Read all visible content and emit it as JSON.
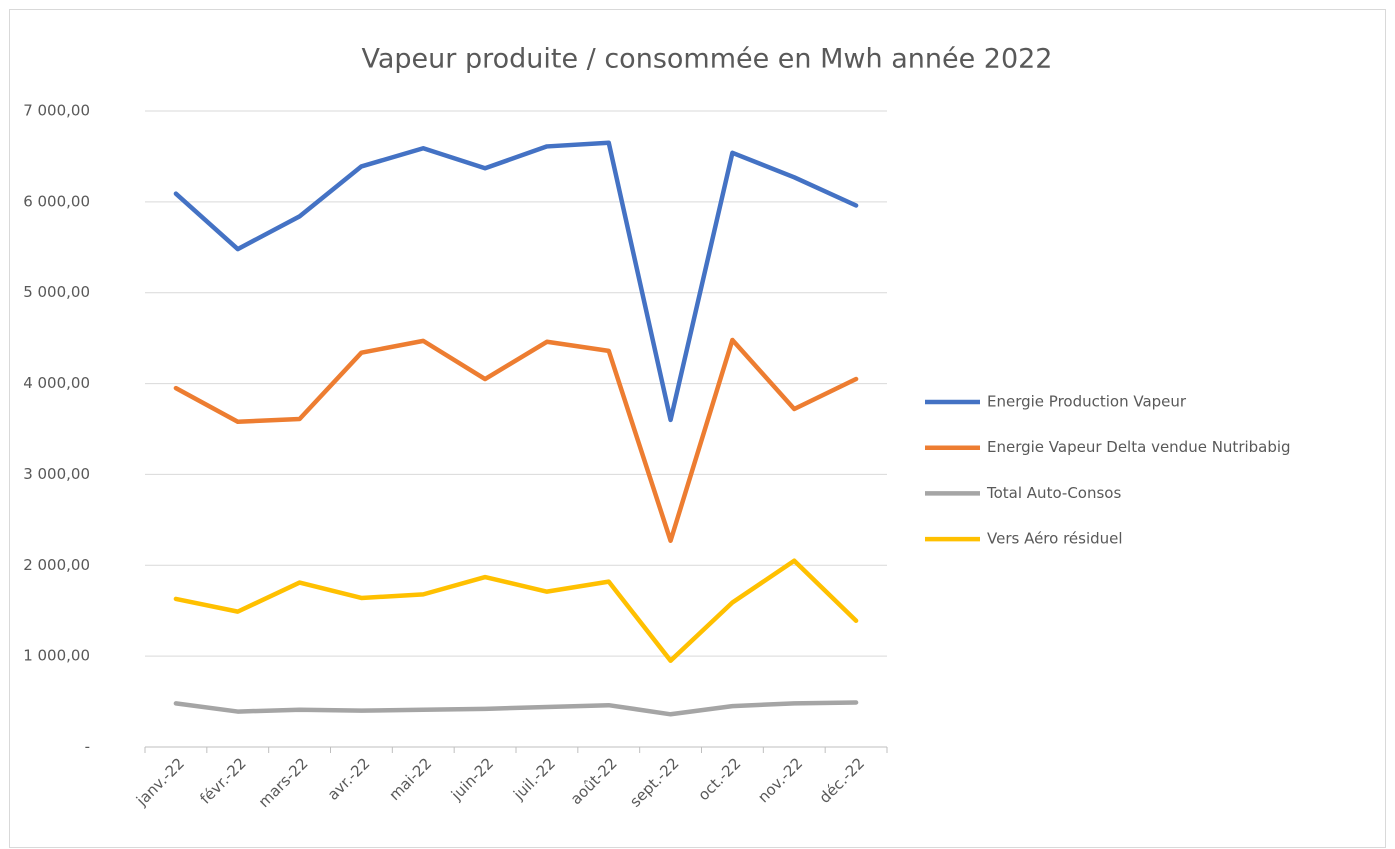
{
  "chart_data": {
    "type": "line",
    "title": "Vapeur produite / consommée en Mwh année 2022",
    "categories": [
      "janv.-22",
      "févr.-22",
      "mars-22",
      "avr.-22",
      "mai-22",
      "juin-22",
      "juil.-22",
      "août-22",
      "sept.-22",
      "oct.-22",
      "nov.-22",
      "déc.-22"
    ],
    "series": [
      {
        "name": "Energie Production Vapeur",
        "color": "#4472c4",
        "values": [
          6090,
          5480,
          5840,
          6390,
          6590,
          6370,
          6610,
          6650,
          3600,
          6540,
          6270,
          5960
        ]
      },
      {
        "name": "Energie Vapeur Delta vendue Nutribabig",
        "color": "#ed7d31",
        "values": [
          3950,
          3580,
          3610,
          4340,
          4470,
          4050,
          4460,
          4360,
          2270,
          4480,
          3720,
          4050
        ]
      },
      {
        "name": "Total Auto-Consos",
        "color": "#a5a5a5",
        "values": [
          480,
          390,
          410,
          400,
          410,
          420,
          440,
          460,
          360,
          450,
          480,
          490
        ]
      },
      {
        "name": "Vers Aéro résiduel",
        "color": "#ffc000",
        "values": [
          1630,
          1490,
          1810,
          1640,
          1680,
          1870,
          1710,
          1820,
          950,
          1590,
          2050,
          1390
        ]
      }
    ],
    "ylim": [
      0,
      7000
    ],
    "yticks": [
      {
        "value": 0,
        "label": "-"
      },
      {
        "value": 1000,
        "label": "1 000,00"
      },
      {
        "value": 2000,
        "label": "2 000,00"
      },
      {
        "value": 3000,
        "label": "3 000,00"
      },
      {
        "value": 4000,
        "label": "4 000,00"
      },
      {
        "value": 5000,
        "label": "5 000,00"
      },
      {
        "value": 6000,
        "label": "6 000,00"
      },
      {
        "value": 7000,
        "label": "7 000,00"
      }
    ],
    "grid": true,
    "legend": "right"
  }
}
